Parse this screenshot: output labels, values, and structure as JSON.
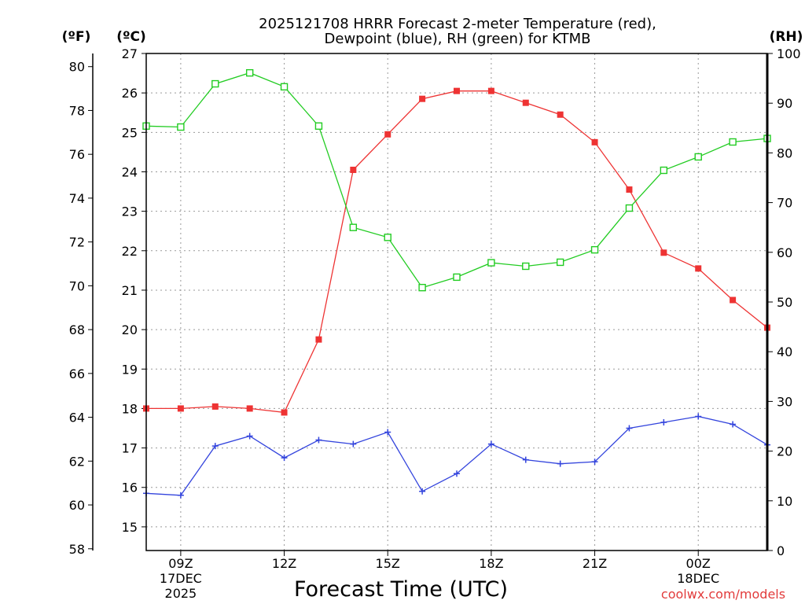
{
  "chart_data": {
    "type": "line",
    "title_line1": "2025121708 HRRR Forecast 2-meter Temperature (red),",
    "title_line2": "Dewpoint (blue), RH (green) for KTMB",
    "xlabel": "Forecast Time (UTC)",
    "credit": "coolwx.com/models",
    "unit_f": "(ºF)",
    "unit_c": "(ºC)",
    "unit_rh": "(RH)",
    "x_hours": [
      8,
      9,
      10,
      11,
      12,
      13,
      14,
      15,
      16,
      17,
      18,
      19,
      20,
      21,
      22,
      23,
      24,
      25,
      26
    ],
    "xlim": [
      8,
      26
    ],
    "x_ticks": [
      {
        "hour": 9,
        "label": "09Z",
        "sub1": "17DEC",
        "sub2": "2025"
      },
      {
        "hour": 12,
        "label": "12Z",
        "sub1": "",
        "sub2": ""
      },
      {
        "hour": 15,
        "label": "15Z",
        "sub1": "",
        "sub2": ""
      },
      {
        "hour": 18,
        "label": "18Z",
        "sub1": "",
        "sub2": ""
      },
      {
        "hour": 21,
        "label": "21Z",
        "sub1": "",
        "sub2": ""
      },
      {
        "hour": 24,
        "label": "00Z",
        "sub1": "18DEC",
        "sub2": ""
      }
    ],
    "celsius_axis": {
      "range": [
        14.4,
        27
      ],
      "ticks": [
        "15",
        "16",
        "17",
        "18",
        "19",
        "20",
        "21",
        "22",
        "23",
        "24",
        "25",
        "26",
        "27"
      ]
    },
    "fahrenheit_axis": {
      "ticks": [
        "58",
        "60",
        "62",
        "64",
        "66",
        "68",
        "70",
        "72",
        "74",
        "76",
        "78",
        "80"
      ]
    },
    "rh_axis": {
      "range": [
        0,
        100
      ],
      "ticks": [
        "0",
        "10",
        "20",
        "30",
        "40",
        "50",
        "60",
        "70",
        "80",
        "90",
        "100"
      ]
    },
    "series": [
      {
        "name": "Temperature",
        "unit": "C",
        "color": "#ee3333",
        "marker": "filled-square",
        "values": [
          18.0,
          18.0,
          18.05,
          18.0,
          17.9,
          19.75,
          24.05,
          24.95,
          25.85,
          26.05,
          26.05,
          25.75,
          25.45,
          24.75,
          23.55,
          21.95,
          21.55,
          20.75,
          20.05
        ]
      },
      {
        "name": "Dewpoint",
        "unit": "C",
        "color": "#3344dd",
        "marker": "plus",
        "values": [
          15.85,
          15.8,
          17.05,
          17.3,
          16.75,
          17.2,
          17.1,
          17.4,
          15.9,
          16.35,
          17.1,
          16.7,
          16.6,
          16.65,
          17.5,
          17.65,
          17.8,
          17.6,
          17.08
        ]
      },
      {
        "name": "RH",
        "unit": "%",
        "color": "#22cc22",
        "marker": "open-square",
        "values": [
          85.4,
          85.2,
          93.9,
          96.1,
          93.3,
          85.4,
          65.0,
          63.0,
          52.9,
          55.0,
          57.9,
          57.2,
          58.0,
          60.5,
          68.9,
          76.5,
          79.2,
          82.2,
          82.9
        ]
      }
    ]
  }
}
